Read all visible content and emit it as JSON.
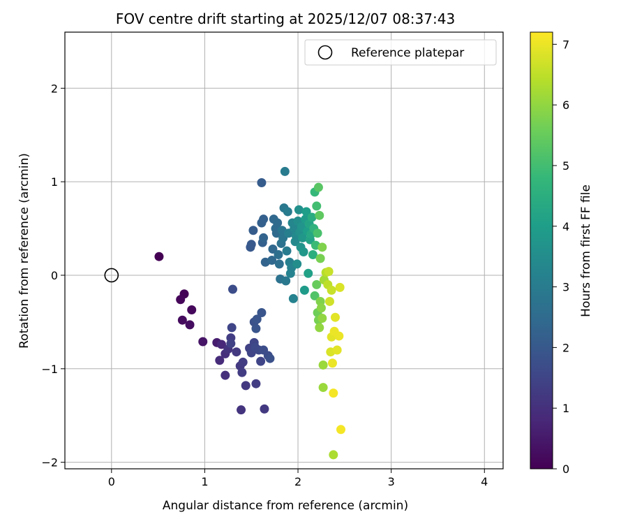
{
  "chart_data": {
    "type": "scatter",
    "title": "FOV centre drift starting at 2025/12/07 08:37:43",
    "xlabel": "Angular distance from reference (arcmin)",
    "ylabel": "Rotation from reference (arcmin)",
    "xlim": [
      -0.5,
      4.2
    ],
    "ylim": [
      -2.07,
      2.6
    ],
    "xticks": [
      0,
      1,
      2,
      3,
      4
    ],
    "yticks": [
      -2,
      -1,
      0,
      1,
      2
    ],
    "xtick_labels": [
      "0",
      "1",
      "2",
      "3",
      "4"
    ],
    "ytick_labels": [
      "−2",
      "−1",
      "0",
      "1",
      "2"
    ],
    "grid": true,
    "legend": {
      "position": "top-right",
      "label": "Reference platepar"
    },
    "reference_point": {
      "x": 0,
      "y": 0
    },
    "colorbar": {
      "label": "Hours from first FF file",
      "range": [
        0,
        7.2
      ],
      "ticks": [
        0,
        1,
        2,
        3,
        4,
        5,
        6,
        7
      ],
      "tick_labels": [
        "0",
        "1",
        "2",
        "3",
        "4",
        "5",
        "6",
        "7"
      ],
      "colormap": [
        "#440154",
        "#482878",
        "#3e4989",
        "#31688e",
        "#26828e",
        "#1f9e89",
        "#35b779",
        "#6ece58",
        "#b5de2b",
        "#fde725"
      ]
    },
    "points": [
      {
        "x": 0.51,
        "y": 0.2,
        "t": 0.0
      },
      {
        "x": 0.78,
        "y": -0.2,
        "t": 0.05
      },
      {
        "x": 0.74,
        "y": -0.26,
        "t": 0.1
      },
      {
        "x": 0.86,
        "y": -0.37,
        "t": 0.15
      },
      {
        "x": 0.76,
        "y": -0.48,
        "t": 0.2
      },
      {
        "x": 0.84,
        "y": -0.53,
        "t": 0.25
      },
      {
        "x": 0.98,
        "y": -0.71,
        "t": 0.4
      },
      {
        "x": 1.13,
        "y": -0.72,
        "t": 0.6
      },
      {
        "x": 1.18,
        "y": -0.74,
        "t": 0.8
      },
      {
        "x": 1.16,
        "y": -0.91,
        "t": 0.9
      },
      {
        "x": 1.22,
        "y": -0.84,
        "t": 1.0
      },
      {
        "x": 1.25,
        "y": -0.79,
        "t": 1.1
      },
      {
        "x": 1.22,
        "y": -1.07,
        "t": 1.0
      },
      {
        "x": 1.28,
        "y": -0.67,
        "t": 1.3
      },
      {
        "x": 1.28,
        "y": -0.73,
        "t": 1.4
      },
      {
        "x": 1.29,
        "y": -0.56,
        "t": 1.5
      },
      {
        "x": 1.34,
        "y": -0.82,
        "t": 1.2
      },
      {
        "x": 1.38,
        "y": -0.97,
        "t": 1.2
      },
      {
        "x": 1.41,
        "y": -0.93,
        "t": 1.3
      },
      {
        "x": 1.4,
        "y": -1.04,
        "t": 1.3
      },
      {
        "x": 1.39,
        "y": -1.44,
        "t": 1.1
      },
      {
        "x": 1.44,
        "y": -1.18,
        "t": 1.2
      },
      {
        "x": 1.48,
        "y": -0.78,
        "t": 1.4
      },
      {
        "x": 1.5,
        "y": -0.83,
        "t": 1.5
      },
      {
        "x": 1.53,
        "y": -0.72,
        "t": 1.5
      },
      {
        "x": 1.54,
        "y": -0.77,
        "t": 1.6
      },
      {
        "x": 1.55,
        "y": -1.16,
        "t": 1.3
      },
      {
        "x": 1.58,
        "y": -0.8,
        "t": 1.6
      },
      {
        "x": 1.6,
        "y": -0.92,
        "t": 1.5
      },
      {
        "x": 1.63,
        "y": -0.8,
        "t": 1.7
      },
      {
        "x": 1.64,
        "y": -1.43,
        "t": 1.2
      },
      {
        "x": 1.68,
        "y": -0.86,
        "t": 1.7
      },
      {
        "x": 1.7,
        "y": -0.89,
        "t": 1.8
      },
      {
        "x": 1.3,
        "y": -0.15,
        "t": 1.7
      },
      {
        "x": 1.53,
        "y": -0.5,
        "t": 1.8
      },
      {
        "x": 1.56,
        "y": -0.47,
        "t": 1.9
      },
      {
        "x": 1.55,
        "y": -0.57,
        "t": 1.9
      },
      {
        "x": 1.61,
        "y": -0.4,
        "t": 1.9
      },
      {
        "x": 1.49,
        "y": 0.3,
        "t": 2.0
      },
      {
        "x": 1.5,
        "y": 0.33,
        "t": 2.0
      },
      {
        "x": 1.52,
        "y": 0.48,
        "t": 2.1
      },
      {
        "x": 1.61,
        "y": 0.99,
        "t": 2.1
      },
      {
        "x": 1.61,
        "y": 0.56,
        "t": 2.2
      },
      {
        "x": 1.63,
        "y": 0.6,
        "t": 2.2
      },
      {
        "x": 1.62,
        "y": 0.35,
        "t": 2.2
      },
      {
        "x": 1.63,
        "y": 0.4,
        "t": 2.3
      },
      {
        "x": 1.65,
        "y": 0.14,
        "t": 2.3
      },
      {
        "x": 1.72,
        "y": 0.16,
        "t": 2.4
      },
      {
        "x": 1.73,
        "y": 0.28,
        "t": 2.4
      },
      {
        "x": 1.74,
        "y": 0.6,
        "t": 2.4
      },
      {
        "x": 1.76,
        "y": 0.5,
        "t": 2.5
      },
      {
        "x": 1.77,
        "y": 0.45,
        "t": 2.5
      },
      {
        "x": 1.78,
        "y": 0.56,
        "t": 2.5
      },
      {
        "x": 1.79,
        "y": 0.22,
        "t": 2.6
      },
      {
        "x": 1.8,
        "y": 0.12,
        "t": 2.6
      },
      {
        "x": 1.81,
        "y": -0.04,
        "t": 2.7
      },
      {
        "x": 1.82,
        "y": 0.34,
        "t": 2.7
      },
      {
        "x": 1.83,
        "y": 0.48,
        "t": 2.8
      },
      {
        "x": 1.84,
        "y": 0.4,
        "t": 2.8
      },
      {
        "x": 1.85,
        "y": 0.72,
        "t": 2.9
      },
      {
        "x": 1.86,
        "y": 1.11,
        "t": 3.0
      },
      {
        "x": 1.87,
        "y": -0.06,
        "t": 2.9
      },
      {
        "x": 1.88,
        "y": 0.26,
        "t": 3.0
      },
      {
        "x": 1.89,
        "y": 0.68,
        "t": 3.0
      },
      {
        "x": 1.9,
        "y": 0.45,
        "t": 3.1
      },
      {
        "x": 1.91,
        "y": 0.14,
        "t": 3.1
      },
      {
        "x": 1.92,
        "y": 0.02,
        "t": 3.2
      },
      {
        "x": 1.93,
        "y": 0.08,
        "t": 3.2
      },
      {
        "x": 1.94,
        "y": 0.56,
        "t": 3.3
      },
      {
        "x": 1.95,
        "y": -0.25,
        "t": 3.2
      },
      {
        "x": 1.96,
        "y": 0.5,
        "t": 3.3
      },
      {
        "x": 1.97,
        "y": 0.36,
        "t": 3.4
      },
      {
        "x": 1.98,
        "y": 0.42,
        "t": 3.4
      },
      {
        "x": 1.99,
        "y": 0.12,
        "t": 3.5
      },
      {
        "x": 2.0,
        "y": 0.58,
        "t": 3.5
      },
      {
        "x": 2.01,
        "y": 0.7,
        "t": 3.6
      },
      {
        "x": 2.02,
        "y": 0.46,
        "t": 3.6
      },
      {
        "x": 2.03,
        "y": 0.3,
        "t": 3.7
      },
      {
        "x": 2.04,
        "y": 0.52,
        "t": 3.7
      },
      {
        "x": 2.05,
        "y": 0.4,
        "t": 3.8
      },
      {
        "x": 2.06,
        "y": 0.25,
        "t": 3.8
      },
      {
        "x": 2.07,
        "y": -0.16,
        "t": 3.9
      },
      {
        "x": 2.08,
        "y": 0.6,
        "t": 3.9
      },
      {
        "x": 2.09,
        "y": 0.68,
        "t": 4.0
      },
      {
        "x": 2.1,
        "y": 0.47,
        "t": 4.0
      },
      {
        "x": 2.11,
        "y": 0.02,
        "t": 4.1
      },
      {
        "x": 2.12,
        "y": 0.55,
        "t": 4.2
      },
      {
        "x": 2.13,
        "y": 0.38,
        "t": 4.2
      },
      {
        "x": 2.14,
        "y": 0.44,
        "t": 4.3
      },
      {
        "x": 2.15,
        "y": 0.62,
        "t": 4.4
      },
      {
        "x": 2.16,
        "y": 0.22,
        "t": 4.5
      },
      {
        "x": 2.17,
        "y": 0.5,
        "t": 4.6
      },
      {
        "x": 2.18,
        "y": 0.89,
        "t": 4.8
      },
      {
        "x": 2.19,
        "y": 0.32,
        "t": 4.9
      },
      {
        "x": 2.2,
        "y": 0.74,
        "t": 5.0
      },
      {
        "x": 2.21,
        "y": 0.45,
        "t": 5.1
      },
      {
        "x": 2.22,
        "y": 0.94,
        "t": 5.3
      },
      {
        "x": 2.23,
        "y": 0.64,
        "t": 5.4
      },
      {
        "x": 2.18,
        "y": -0.22,
        "t": 5.2
      },
      {
        "x": 2.2,
        "y": -0.1,
        "t": 5.5
      },
      {
        "x": 2.21,
        "y": -0.4,
        "t": 5.6
      },
      {
        "x": 2.22,
        "y": -0.48,
        "t": 5.7
      },
      {
        "x": 2.24,
        "y": -0.28,
        "t": 5.8
      },
      {
        "x": 2.25,
        "y": -0.35,
        "t": 5.9
      },
      {
        "x": 2.23,
        "y": -0.56,
        "t": 6.0
      },
      {
        "x": 2.26,
        "y": -0.46,
        "t": 6.0
      },
      {
        "x": 2.27,
        "y": -0.96,
        "t": 6.1
      },
      {
        "x": 2.27,
        "y": -1.2,
        "t": 6.1
      },
      {
        "x": 2.24,
        "y": 0.18,
        "t": 5.7
      },
      {
        "x": 2.26,
        "y": 0.3,
        "t": 5.8
      },
      {
        "x": 2.28,
        "y": -0.05,
        "t": 6.2
      },
      {
        "x": 2.3,
        "y": 0.03,
        "t": 6.4
      },
      {
        "x": 2.32,
        "y": -0.1,
        "t": 6.5
      },
      {
        "x": 2.33,
        "y": 0.04,
        "t": 6.6
      },
      {
        "x": 2.35,
        "y": -0.82,
        "t": 6.8
      },
      {
        "x": 2.36,
        "y": -0.66,
        "t": 6.9
      },
      {
        "x": 2.37,
        "y": -0.94,
        "t": 7.0
      },
      {
        "x": 2.38,
        "y": -1.26,
        "t": 7.1
      },
      {
        "x": 2.39,
        "y": -0.6,
        "t": 7.0
      },
      {
        "x": 2.4,
        "y": -0.45,
        "t": 6.9
      },
      {
        "x": 2.42,
        "y": -0.8,
        "t": 6.9
      },
      {
        "x": 2.44,
        "y": -0.65,
        "t": 7.0
      },
      {
        "x": 2.45,
        "y": -0.13,
        "t": 6.8
      },
      {
        "x": 2.46,
        "y": -1.65,
        "t": 7.1
      },
      {
        "x": 2.38,
        "y": -1.92,
        "t": 6.3
      },
      {
        "x": 2.34,
        "y": -0.28,
        "t": 6.7
      },
      {
        "x": 2.36,
        "y": -0.16,
        "t": 6.6
      }
    ]
  }
}
